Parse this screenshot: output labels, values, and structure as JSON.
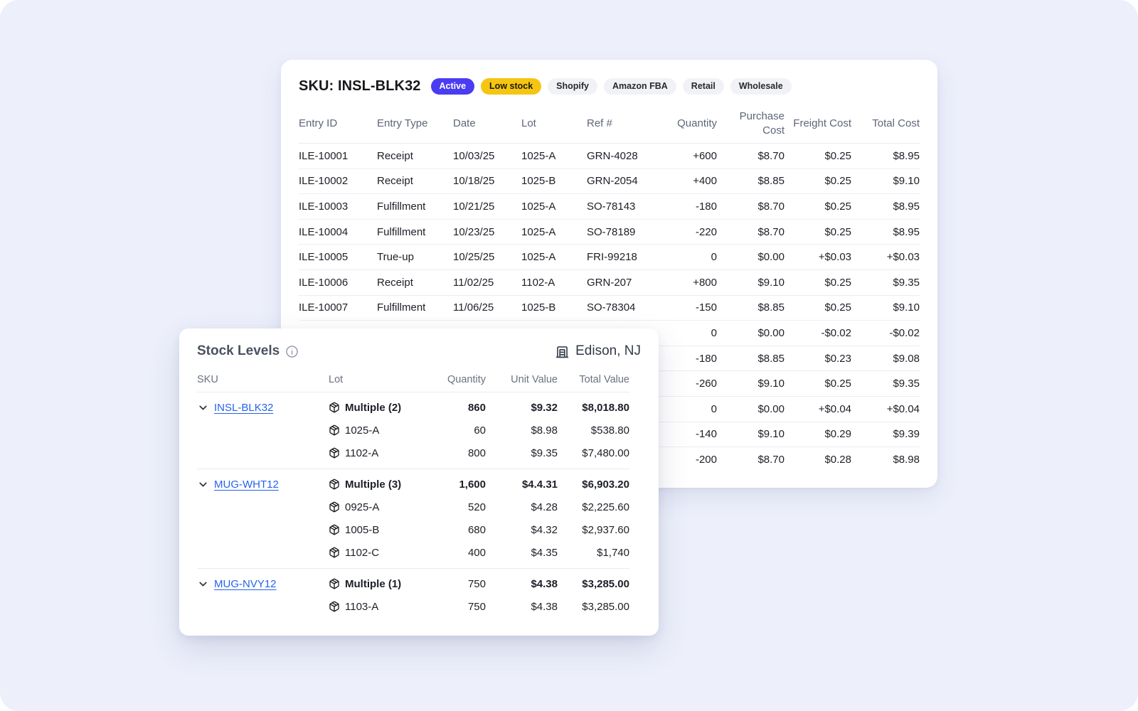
{
  "colors": {
    "page_bg": "#edf0fb",
    "active_badge": "#4a3cf0",
    "warning_badge": "#f5c513",
    "link": "#2563eb"
  },
  "ledger_card": {
    "title": "SKU: INSL-BLK32",
    "badges": [
      {
        "label": "Active",
        "type": "active"
      },
      {
        "label": "Low stock",
        "type": "warning"
      },
      {
        "label": "Shopify",
        "type": "neutral"
      },
      {
        "label": "Amazon FBA",
        "type": "neutral"
      },
      {
        "label": "Retail",
        "type": "neutral"
      },
      {
        "label": "Wholesale",
        "type": "neutral"
      }
    ],
    "columns": [
      "Entry ID",
      "Entry Type",
      "Date",
      "Lot",
      "Ref #",
      "Quantity",
      "Purchase Cost",
      "Freight Cost",
      "Total Cost"
    ],
    "rows": [
      [
        "ILE-10001",
        "Receipt",
        "10/03/25",
        "1025-A",
        "GRN-4028",
        "+600",
        "$8.70",
        "$0.25",
        "$8.95"
      ],
      [
        "ILE-10002",
        "Receipt",
        "10/18/25",
        "1025-B",
        "GRN-2054",
        "+400",
        "$8.85",
        "$0.25",
        "$9.10"
      ],
      [
        "ILE-10003",
        "Fulfillment",
        "10/21/25",
        "1025-A",
        "SO-78143",
        "-180",
        "$8.70",
        "$0.25",
        "$8.95"
      ],
      [
        "ILE-10004",
        "Fulfillment",
        "10/23/25",
        "1025-A",
        "SO-78189",
        "-220",
        "$8.70",
        "$0.25",
        "$8.95"
      ],
      [
        "ILE-10005",
        "True-up",
        "10/25/25",
        "1025-A",
        "FRI-99218",
        "0",
        "$0.00",
        "+$0.03",
        "+$0.03"
      ],
      [
        "ILE-10006",
        "Receipt",
        "11/02/25",
        "1102-A",
        "GRN-207",
        "+800",
        "$9.10",
        "$0.25",
        "$9.35"
      ],
      [
        "ILE-10007",
        "Fulfillment",
        "11/06/25",
        "1025-B",
        "SO-78304",
        "-150",
        "$8.85",
        "$0.25",
        "$9.10"
      ],
      [
        "",
        "",
        "",
        "",
        "",
        "0",
        "$0.00",
        "-$0.02",
        "-$0.02"
      ],
      [
        "",
        "",
        "",
        "",
        "",
        "-180",
        "$8.85",
        "$0.23",
        "$9.08"
      ],
      [
        "",
        "",
        "",
        "",
        "",
        "-260",
        "$9.10",
        "$0.25",
        "$9.35"
      ],
      [
        "",
        "",
        "",
        "",
        "",
        "0",
        "$0.00",
        "+$0.04",
        "+$0.04"
      ],
      [
        "",
        "",
        "",
        "",
        "",
        "-140",
        "$9.10",
        "$0.29",
        "$9.39"
      ],
      [
        "",
        "",
        "",
        "",
        "",
        "-200",
        "$8.70",
        "$0.28",
        "$8.98"
      ]
    ]
  },
  "stock_card": {
    "title": "Stock Levels",
    "info_icon": "info-circle",
    "location_icon": "warehouse-building",
    "location": "Edison, NJ",
    "columns": [
      "SKU",
      "Lot",
      "Quantity",
      "Unit Value",
      "Total Value"
    ],
    "groups": [
      {
        "sku": "INSL-BLK32",
        "summary": {
          "lot": "Multiple (2)",
          "qty": "860",
          "unit": "$9.32",
          "total": "$8,018.80",
          "qty_bold": true
        },
        "lots": [
          {
            "lot": "1025-A",
            "qty": "60",
            "unit": "$8.98",
            "total": "$538.80"
          },
          {
            "lot": "1102-A",
            "qty": "800",
            "unit": "$9.35",
            "total": "$7,480.00"
          }
        ]
      },
      {
        "sku": "MUG-WHT12",
        "summary": {
          "lot": "Multiple (3)",
          "qty": "1,600",
          "unit": "$4.4.31",
          "total": "$6,903.20",
          "qty_bold": true
        },
        "lots": [
          {
            "lot": "0925-A",
            "qty": "520",
            "unit": "$4.28",
            "total": "$2,225.60"
          },
          {
            "lot": "1005-B",
            "qty": "680",
            "unit": "$4.32",
            "total": "$2,937.60"
          },
          {
            "lot": "1102-C",
            "qty": "400",
            "unit": "$4.35",
            "total": "$1,740"
          }
        ]
      },
      {
        "sku": "MUG-NVY12",
        "summary": {
          "lot": "Multiple (1)",
          "qty": "750",
          "unit": "$4.38",
          "total": "$3,285.00",
          "qty_bold": false
        },
        "lots": [
          {
            "lot": "1103-A",
            "qty": "750",
            "unit": "$4.38",
            "total": "$3,285.00"
          }
        ]
      }
    ]
  }
}
